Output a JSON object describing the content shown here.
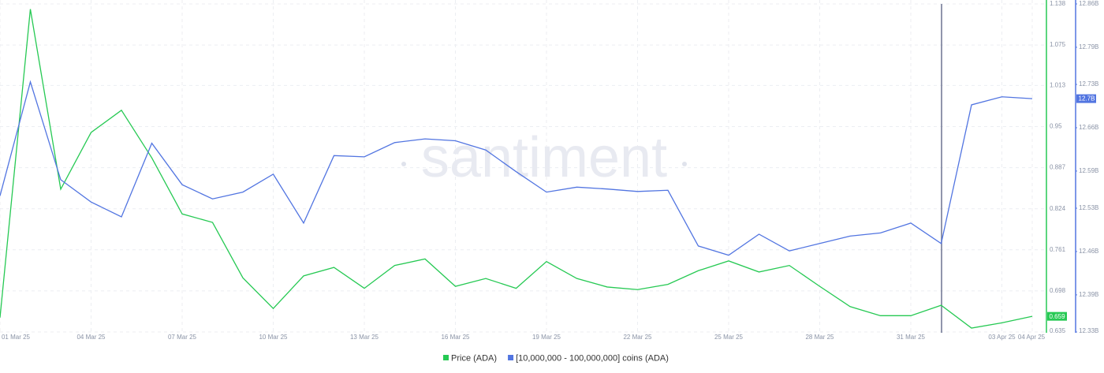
{
  "chart_data": {
    "type": "line",
    "watermark": "santiment",
    "categories": [
      "01 Mar 25",
      null,
      null,
      "04 Mar 25",
      null,
      null,
      "07 Mar 25",
      null,
      null,
      "10 Mar 25",
      null,
      null,
      "13 Mar 25",
      null,
      null,
      "16 Mar 25",
      null,
      null,
      "19 Mar 25",
      null,
      null,
      "22 Mar 25",
      null,
      null,
      "25 Mar 25",
      null,
      null,
      "28 Mar 25",
      null,
      null,
      "31 Mar 25",
      null,
      null,
      "03 Apr 25",
      "04 Apr 25"
    ],
    "series": [
      {
        "name": "Price (ADA)",
        "color": "#26c953",
        "axis": "y",
        "values": [
          0.657,
          1.13,
          0.854,
          0.941,
          0.975,
          0.902,
          0.816,
          0.803,
          0.718,
          0.671,
          0.721,
          0.734,
          0.702,
          0.737,
          0.747,
          0.705,
          0.717,
          0.702,
          0.743,
          0.717,
          0.704,
          0.7,
          0.708,
          0.729,
          0.744,
          0.727,
          0.737,
          0.705,
          0.674,
          0.66,
          0.66,
          0.676,
          0.641,
          0.649,
          0.659
        ]
      },
      {
        "name": "[10,000,000 - 100,000,000] coins (ADA)",
        "color": "#5275e1",
        "axis": "y2",
        "values": [
          12550000000,
          12734000000,
          12576000000,
          12540000000,
          12516000000,
          12635000000,
          12568000000,
          12545000000,
          12556000000,
          12585000000,
          12506000000,
          12615000000,
          12613000000,
          12636000000,
          12642000000,
          12639000000,
          12624000000,
          12589000000,
          12556000000,
          12564000000,
          12561000000,
          12557000000,
          12559000000,
          12469000000,
          12454000000,
          12488000000,
          12461000000,
          12473000000,
          12485000000,
          12490000000,
          12506000000,
          12473000000,
          12697000000,
          12710000000,
          12707000000
        ],
        "value_labels": [
          null,
          null,
          null,
          null,
          null,
          null,
          null,
          null,
          null,
          null,
          null,
          null,
          null,
          null,
          null,
          null,
          null,
          null,
          null,
          null,
          null,
          null,
          null,
          null,
          null,
          null,
          null,
          null,
          null,
          null,
          null,
          null,
          null,
          null,
          "12.7B"
        ]
      }
    ],
    "ylim": [
      0.635,
      1.138
    ],
    "yticks": [
      0.635,
      0.698,
      0.761,
      0.824,
      0.887,
      0.95,
      1.013,
      1.075,
      1.138
    ],
    "y2lim": [
      12330000000,
      12860000000
    ],
    "y2ticks": [
      {
        "value": 12330000000,
        "label": "12.33B"
      },
      {
        "value": 12390000000,
        "label": "12.39B"
      },
      {
        "value": 12460000000,
        "label": "12.46B"
      },
      {
        "value": 12530000000,
        "label": "12.53B"
      },
      {
        "value": 12590000000,
        "label": "12.59B"
      },
      {
        "value": 12660000000,
        "label": "12.66B"
      },
      {
        "value": 12730000000,
        "label": "12.73B"
      },
      {
        "value": 12790000000,
        "label": "12.79B"
      },
      {
        "value": 12860000000,
        "label": "12.86B"
      }
    ],
    "grid": true
  }
}
